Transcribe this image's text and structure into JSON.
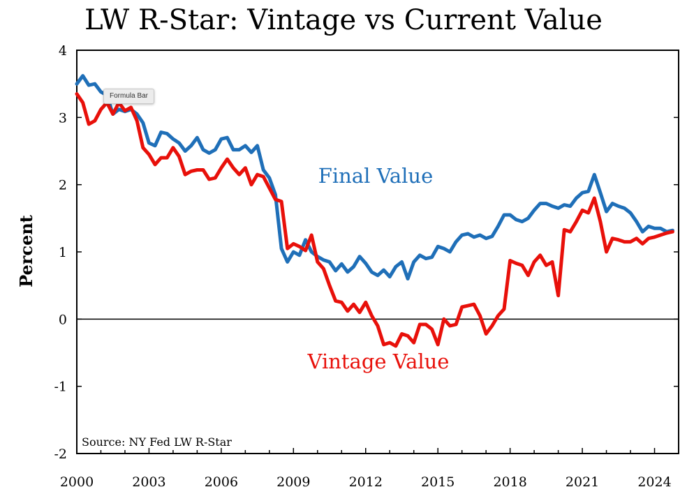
{
  "chart_data": {
    "type": "line",
    "title": "LW R-Star: Vintage vs Current Value",
    "ylabel": "Percent",
    "xlabel": "",
    "source": "Source: NY Fed LW R-Star",
    "ylim": [
      -2,
      4
    ],
    "xlim": [
      2000,
      2025
    ],
    "yticks": [
      "4",
      "3",
      "2",
      "1",
      "0",
      "-1",
      "-2"
    ],
    "xticks": [
      "2000",
      "2003",
      "2006",
      "2009",
      "2012",
      "2015",
      "2018",
      "2021",
      "2024"
    ],
    "grid": false,
    "zero_line": true,
    "series": [
      {
        "name": "Final Value",
        "color": "#1f6fb8",
        "x": [
          2000.0,
          2000.25,
          2000.5,
          2000.75,
          2001.0,
          2001.25,
          2001.5,
          2001.75,
          2002.0,
          2002.25,
          2002.5,
          2002.75,
          2003.0,
          2003.25,
          2003.5,
          2003.75,
          2004.0,
          2004.25,
          2004.5,
          2004.75,
          2005.0,
          2005.25,
          2005.5,
          2005.75,
          2006.0,
          2006.25,
          2006.5,
          2006.75,
          2007.0,
          2007.25,
          2007.5,
          2007.75,
          2008.0,
          2008.25,
          2008.5,
          2008.75,
          2009.0,
          2009.25,
          2009.5,
          2009.75,
          2010.0,
          2010.25,
          2010.5,
          2010.75,
          2011.0,
          2011.25,
          2011.5,
          2011.75,
          2012.0,
          2012.25,
          2012.5,
          2012.75,
          2013.0,
          2013.25,
          2013.5,
          2013.75,
          2014.0,
          2014.25,
          2014.5,
          2014.75,
          2015.0,
          2015.25,
          2015.5,
          2015.75,
          2016.0,
          2016.25,
          2016.5,
          2016.75,
          2017.0,
          2017.25,
          2017.5,
          2017.75,
          2018.0,
          2018.25,
          2018.5,
          2018.75,
          2019.0,
          2019.25,
          2019.5,
          2019.75,
          2020.0,
          2020.25,
          2020.5,
          2020.75,
          2021.0,
          2021.25,
          2021.5,
          2021.75,
          2022.0,
          2022.25,
          2022.5,
          2022.75,
          2023.0,
          2023.25,
          2023.5,
          2023.75,
          2024.0,
          2024.25,
          2024.5,
          2024.75
        ],
        "values": [
          3.5,
          3.62,
          3.48,
          3.5,
          3.38,
          3.33,
          3.05,
          3.12,
          3.09,
          3.12,
          3.05,
          2.92,
          2.62,
          2.58,
          2.78,
          2.76,
          2.68,
          2.62,
          2.5,
          2.58,
          2.7,
          2.52,
          2.47,
          2.52,
          2.68,
          2.7,
          2.52,
          2.52,
          2.58,
          2.48,
          2.58,
          2.22,
          2.1,
          1.85,
          1.05,
          0.85,
          1.0,
          0.95,
          1.18,
          1.0,
          0.93,
          0.88,
          0.85,
          0.72,
          0.82,
          0.7,
          0.78,
          0.93,
          0.83,
          0.7,
          0.65,
          0.73,
          0.63,
          0.78,
          0.85,
          0.6,
          0.85,
          0.95,
          0.9,
          0.92,
          1.08,
          1.05,
          1.0,
          1.15,
          1.25,
          1.27,
          1.22,
          1.25,
          1.2,
          1.23,
          1.38,
          1.55,
          1.55,
          1.48,
          1.45,
          1.5,
          1.62,
          1.72,
          1.72,
          1.68,
          1.65,
          1.7,
          1.68,
          1.8,
          1.88,
          1.9,
          2.15,
          1.88,
          1.6,
          1.72,
          1.68,
          1.65,
          1.58,
          1.45,
          1.3,
          1.38,
          1.35,
          1.35,
          1.3,
          1.32
        ]
      },
      {
        "name": "Vintage Value",
        "color": "#e8100a",
        "x": [
          2000.0,
          2000.25,
          2000.5,
          2000.75,
          2001.0,
          2001.25,
          2001.5,
          2001.75,
          2002.0,
          2002.25,
          2002.5,
          2002.75,
          2003.0,
          2003.25,
          2003.5,
          2003.75,
          2004.0,
          2004.25,
          2004.5,
          2004.75,
          2005.0,
          2005.25,
          2005.5,
          2005.75,
          2006.0,
          2006.25,
          2006.5,
          2006.75,
          2007.0,
          2007.25,
          2007.5,
          2007.75,
          2008.0,
          2008.25,
          2008.5,
          2008.75,
          2009.0,
          2009.25,
          2009.5,
          2009.75,
          2010.0,
          2010.25,
          2010.5,
          2010.75,
          2011.0,
          2011.25,
          2011.5,
          2011.75,
          2012.0,
          2012.25,
          2012.5,
          2012.75,
          2013.0,
          2013.25,
          2013.5,
          2013.75,
          2014.0,
          2014.25,
          2014.5,
          2014.75,
          2015.0,
          2015.25,
          2015.5,
          2015.75,
          2016.0,
          2016.25,
          2016.5,
          2016.75,
          2017.0,
          2017.25,
          2017.5,
          2017.75,
          2018.0,
          2018.25,
          2018.5,
          2018.75,
          2019.0,
          2019.25,
          2019.5,
          2019.75,
          2020.0,
          2020.25,
          2020.5,
          2020.75,
          2021.0,
          2021.25,
          2021.5,
          2021.75,
          2022.0,
          2022.25,
          2022.5,
          2022.75,
          2023.0,
          2023.25,
          2023.5,
          2023.75,
          2024.0,
          2024.25,
          2024.5,
          2024.75
        ],
        "values": [
          3.35,
          3.22,
          2.9,
          2.95,
          3.12,
          3.22,
          3.05,
          3.22,
          3.1,
          3.15,
          2.95,
          2.55,
          2.45,
          2.3,
          2.4,
          2.4,
          2.55,
          2.42,
          2.15,
          2.2,
          2.22,
          2.22,
          2.08,
          2.1,
          2.25,
          2.38,
          2.25,
          2.15,
          2.25,
          2.0,
          2.15,
          2.12,
          1.95,
          1.78,
          1.75,
          1.05,
          1.12,
          1.08,
          1.02,
          1.25,
          0.85,
          0.75,
          0.5,
          0.27,
          0.25,
          0.12,
          0.22,
          0.1,
          0.25,
          0.05,
          -0.1,
          -0.38,
          -0.35,
          -0.4,
          -0.22,
          -0.25,
          -0.35,
          -0.08,
          -0.08,
          -0.15,
          -0.38,
          0.0,
          -0.1,
          -0.08,
          0.18,
          0.2,
          0.22,
          0.05,
          -0.22,
          -0.1,
          0.05,
          0.15,
          0.87,
          0.83,
          0.8,
          0.65,
          0.85,
          0.95,
          0.8,
          0.85,
          0.35,
          1.33,
          1.3,
          1.45,
          1.62,
          1.58,
          1.8,
          1.45,
          1.0,
          1.2,
          1.18,
          1.15,
          1.15,
          1.2,
          1.12,
          1.2,
          1.22,
          1.25,
          1.28,
          1.3
        ]
      }
    ]
  },
  "overlay": {
    "tooltip_text": "Formula Bar"
  }
}
